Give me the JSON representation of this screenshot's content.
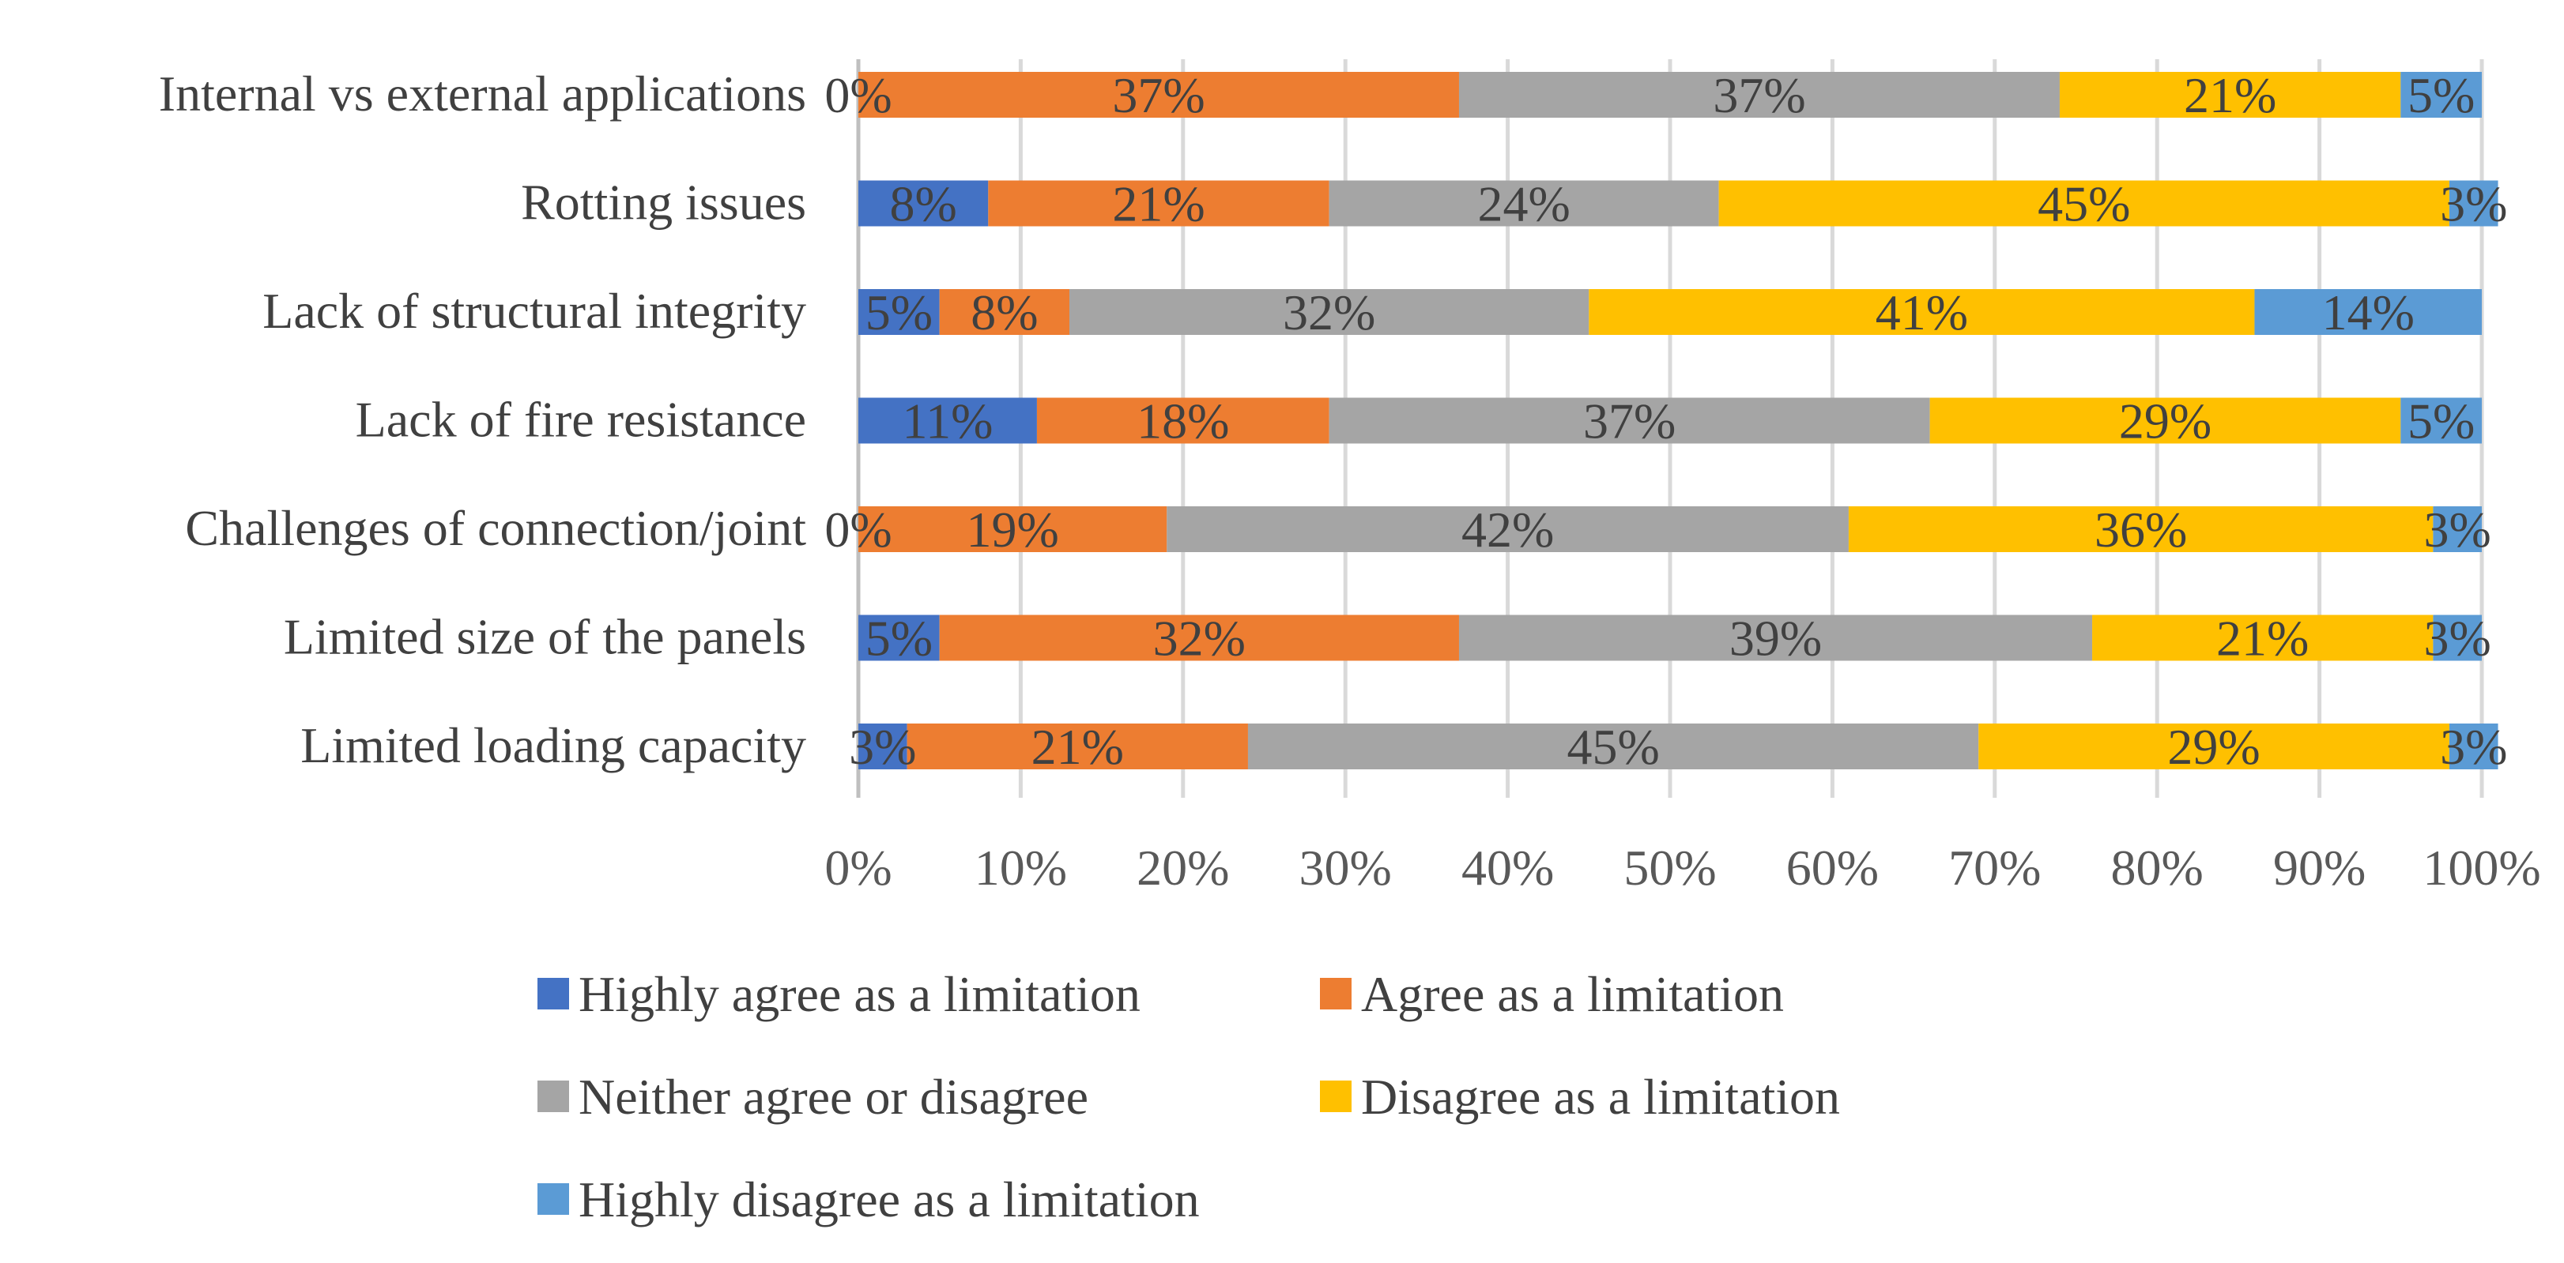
{
  "chart_data": {
    "type": "bar",
    "orientation": "horizontal",
    "stacked": "percent",
    "title": "",
    "xlabel": "",
    "ylabel": "",
    "xlim": [
      0,
      100
    ],
    "grid": true,
    "legend_position": "bottom",
    "categories": [
      "Internal vs external applications",
      "Rotting issues",
      "Lack of structural integrity",
      "Lack of fire resistance",
      "Challenges of connection/joint",
      "Limited size of the panels",
      "Limited loading capacity"
    ],
    "x_ticks": [
      "0%",
      "10%",
      "20%",
      "30%",
      "40%",
      "50%",
      "60%",
      "70%",
      "80%",
      "90%",
      "100%"
    ],
    "series": [
      {
        "name": "Highly agree as a limitation",
        "color": "#4472C4",
        "values": [
          0,
          8,
          5,
          11,
          0,
          5,
          3
        ]
      },
      {
        "name": "Agree as a limitation",
        "color": "#ED7D31",
        "values": [
          37,
          21,
          8,
          18,
          19,
          32,
          21
        ]
      },
      {
        "name": "Neither agree or disagree",
        "color": "#A5A5A5",
        "values": [
          37,
          24,
          32,
          37,
          42,
          39,
          45
        ]
      },
      {
        "name": "Disagree as a limitation",
        "color": "#FFC000",
        "values": [
          21,
          45,
          41,
          29,
          36,
          21,
          29
        ]
      },
      {
        "name": "Highly disagree as a limitation",
        "color": "#5B9BD5",
        "values": [
          5,
          3,
          14,
          5,
          3,
          3,
          3
        ]
      }
    ]
  }
}
